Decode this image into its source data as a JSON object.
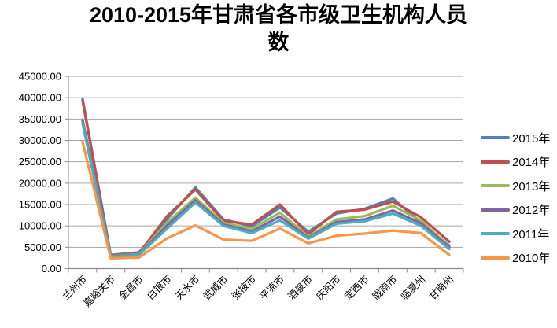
{
  "title": {
    "text": "2010-2015年甘肃省各市级卫生机构人员数",
    "line1": "2010-2015年甘肃省各市级卫生机构人员",
    "line2": "数"
  },
  "chart_data": {
    "type": "line",
    "title": "2010-2015年甘肃省各市级卫生机构人员数",
    "xlabel": "",
    "ylabel": "",
    "ylim": [
      0,
      45000
    ],
    "ytick_step": 5000,
    "ytick_labels": [
      "0.00",
      "5000.00",
      "10000.00",
      "15000.00",
      "20000.00",
      "25000.00",
      "30000.00",
      "35000.00",
      "40000.00",
      "45000.00"
    ],
    "grid": true,
    "legend_position": "right",
    "categories": [
      "兰州市",
      "嘉峪关市",
      "金昌市",
      "白银市",
      "天水市",
      "武威市",
      "张掖市",
      "平凉市",
      "酒泉市",
      "庆阳市",
      "定西市",
      "陇南市",
      "临夏州",
      "甘南州"
    ],
    "series": [
      {
        "name": "2015年",
        "color": "#4F81BD",
        "values": [
          39800,
          3200,
          3800,
          11600,
          19000,
          11500,
          9900,
          14300,
          8600,
          12900,
          14000,
          16400,
          10800,
          5400
        ]
      },
      {
        "name": "2014年",
        "color": "#C0504D",
        "values": [
          39300,
          3000,
          3600,
          12300,
          18500,
          11200,
          10300,
          15000,
          8000,
          13300,
          13800,
          15700,
          12000,
          6300
        ]
      },
      {
        "name": "2013年",
        "color": "#9BBB59",
        "values": [
          34900,
          2900,
          3400,
          10800,
          16600,
          10700,
          9300,
          13100,
          7500,
          11500,
          12300,
          14700,
          11200,
          5200
        ]
      },
      {
        "name": "2012年",
        "color": "#8064A2",
        "values": [
          34700,
          2800,
          3300,
          10100,
          16000,
          10300,
          8700,
          12200,
          7200,
          10900,
          11500,
          13600,
          10600,
          5000
        ]
      },
      {
        "name": "2011年",
        "color": "#4BACC6",
        "values": [
          34000,
          2700,
          3200,
          9400,
          15500,
          10000,
          8300,
          11300,
          7000,
          10500,
          11100,
          12900,
          10000,
          4600
        ]
      },
      {
        "name": "2010年",
        "color": "#F79646",
        "values": [
          29700,
          2400,
          2600,
          7100,
          10100,
          6800,
          6500,
          9400,
          5900,
          7700,
          8200,
          8900,
          8300,
          3200
        ]
      }
    ],
    "style": {
      "gridline_color": "#A6A6A6",
      "axis_color": "#898989",
      "line_width": 3.2,
      "text_color": "#000000"
    }
  }
}
